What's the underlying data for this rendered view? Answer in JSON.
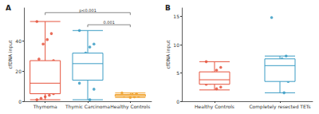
{
  "chart_data": [
    {
      "type": "boxplot",
      "title": "A",
      "y_label": "cfDNA input",
      "categories": [
        "Thymoma",
        "Thymic Carcinoma",
        "Healthy Controls"
      ],
      "colors": [
        "#e5533d",
        "#3a9cc4",
        "#f0a22e"
      ],
      "boxes": [
        [
          1,
          5,
          12,
          27,
          53
        ],
        [
          1,
          14,
          25,
          32,
          47
        ],
        [
          2.5,
          3.2,
          3.8,
          4.5,
          5.5
        ]
      ],
      "points": [
        [
          53,
          45,
          41,
          38,
          28,
          27,
          25,
          20,
          15,
          12,
          11,
          10,
          8,
          7,
          5,
          4,
          3,
          2,
          1
        ],
        [
          47,
          38,
          36,
          32,
          30,
          28,
          25,
          22,
          15,
          12,
          8,
          1
        ],
        [
          5.5,
          5,
          4.5,
          4,
          3.8,
          3.5,
          3,
          2.5
        ]
      ],
      "ylim": [
        0,
        62
      ],
      "yticks": [
        0,
        20,
        40
      ],
      "grid": false,
      "annotations": [
        {
          "label": "p<0.001",
          "from": "Thymoma",
          "to": "Healthy Controls"
        },
        {
          "label": "0.001",
          "from": "Thymic Carcinoma",
          "to": "Healthy Controls"
        }
      ]
    },
    {
      "type": "boxplot",
      "title": "B",
      "y_label": "cfDNA input",
      "categories": [
        "Healthy Controls",
        "Completely resected TETs"
      ],
      "colors": [
        "#e5533d",
        "#3a9cc4"
      ],
      "boxes": [
        [
          2,
          3,
          3.8,
          5.2,
          7
        ],
        [
          1.5,
          3.5,
          6.3,
          7.5,
          8
        ]
      ],
      "points": [
        [
          7,
          6,
          5.5,
          5,
          4.5,
          4,
          3.8,
          3.5,
          3.2,
          3,
          2.5,
          2.2
        ],
        [
          14.8,
          8,
          7.5,
          6.5,
          4.5,
          3.5,
          1.5
        ]
      ],
      "ylim": [
        0,
        16.5
      ],
      "yticks": [
        0,
        5,
        10,
        15
      ],
      "grid": false
    }
  ]
}
